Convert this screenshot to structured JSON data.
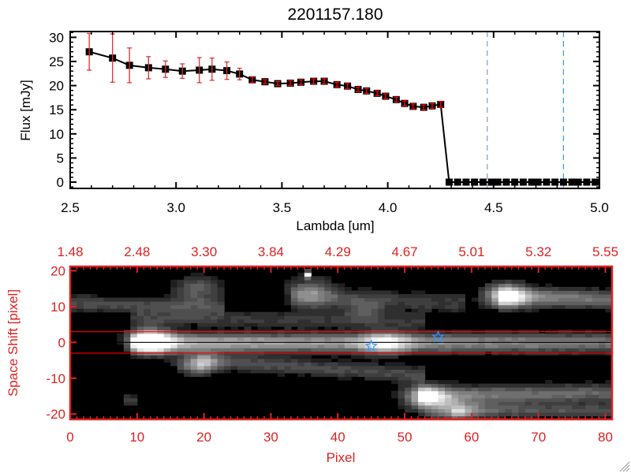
{
  "chart_data": [
    {
      "type": "line",
      "title": "2201157.180",
      "xlabel": "Lambda [um]",
      "ylabel": "Flux [mJy]",
      "xlim": [
        2.5,
        5.0
      ],
      "ylim": [
        -1.3,
        31.2
      ],
      "xticks": [
        "2.5",
        "3.0",
        "3.5",
        "4.0",
        "4.5",
        "5.0"
      ],
      "xtick_values": [
        2.5,
        3.0,
        3.5,
        4.0,
        4.5,
        5.0
      ],
      "yticks": [
        "0",
        "5",
        "10",
        "15",
        "20",
        "25",
        "30"
      ],
      "ytick_values": [
        0,
        5,
        10,
        15,
        20,
        25,
        30
      ],
      "series": [
        {
          "name": "flux",
          "color": "#000000",
          "error_color": "#ff0000",
          "x": [
            2.59,
            2.7,
            2.78,
            2.87,
            2.95,
            3.03,
            3.11,
            3.17,
            3.24,
            3.3,
            3.36,
            3.42,
            3.48,
            3.54,
            3.59,
            3.65,
            3.7,
            3.76,
            3.81,
            3.86,
            3.9,
            3.95,
            3.99,
            4.04,
            4.08,
            4.12,
            4.17,
            4.21,
            4.25,
            4.29,
            4.33,
            4.37,
            4.41,
            4.45,
            4.49,
            4.52,
            4.56,
            4.6,
            4.64,
            4.68,
            4.71,
            4.75,
            4.79,
            4.83,
            4.87,
            4.9,
            4.94,
            4.98
          ],
          "y": [
            27.0,
            25.7,
            24.2,
            23.7,
            23.4,
            23.0,
            23.2,
            23.4,
            23.1,
            22.4,
            21.2,
            20.8,
            20.4,
            20.5,
            20.7,
            20.9,
            20.9,
            20.2,
            19.9,
            19.2,
            18.9,
            18.4,
            17.8,
            17.1,
            16.3,
            15.7,
            15.5,
            15.8,
            16.1,
            0,
            0,
            0,
            0,
            0,
            0,
            0,
            0,
            0,
            0,
            0,
            0,
            0,
            0,
            0,
            0,
            0,
            0,
            0
          ],
          "err": [
            3.8,
            5.0,
            3.6,
            2.3,
            1.7,
            1.5,
            2.6,
            2.3,
            1.8,
            1.2,
            0.6,
            0.4,
            0.4,
            0.5,
            0.5,
            0.5,
            0.5,
            0.5,
            0.5,
            0.5,
            0.5,
            0.5,
            0.5,
            0.5,
            0.5,
            0.5,
            0.5,
            0.5,
            0.6,
            0,
            0,
            0,
            0,
            0,
            0,
            0,
            0,
            0,
            0,
            0,
            0,
            0,
            0,
            0,
            0,
            0,
            0,
            0
          ]
        }
      ],
      "vlines": [
        {
          "x": 4.47,
          "color": "#8a9bb0"
        },
        {
          "x": 4.83,
          "color": "#3399ff"
        }
      ],
      "zero_line_color": "#ff0000"
    },
    {
      "type": "heatmap",
      "xlabel": "Pixel",
      "ylabel": "Space Shift [pixel]",
      "axis_color": "#dd2222",
      "xlim": [
        0,
        81
      ],
      "ylim": [
        -21.5,
        21.2
      ],
      "xticks": [
        "0",
        "10",
        "20",
        "30",
        "40",
        "50",
        "60",
        "70",
        "80"
      ],
      "xtick_values": [
        0,
        10,
        20,
        30,
        40,
        50,
        60,
        70,
        80
      ],
      "top_xticks": [
        "1.48",
        "2.48",
        "3.30",
        "3.84",
        "4.29",
        "4.67",
        "5.01",
        "5.32",
        "5.55"
      ],
      "yticks": [
        "-20",
        "-10",
        "0",
        "10",
        "20"
      ],
      "ytick_values": [
        -20,
        -10,
        0,
        10,
        20
      ],
      "hlines": [
        {
          "y": 3,
          "color": "#ff0000"
        },
        {
          "y": -3,
          "color": "#ff0000"
        },
        {
          "y": 0,
          "color": "#000000"
        }
      ],
      "stars": [
        {
          "x": 45,
          "y": -1,
          "color": "#3399ff"
        },
        {
          "x": 55,
          "y": 1.5,
          "color": "#3399ff"
        }
      ],
      "blobs": [
        {
          "x": 12,
          "y": 0.5,
          "amp": 1.0,
          "sx": 2.2,
          "sy": 2.3
        },
        {
          "x": 47,
          "y": 0,
          "amp": 0.55,
          "sx": 2.5,
          "sy": 2.2
        },
        {
          "x": 19,
          "y": -6,
          "amp": 0.6,
          "sx": 2.0,
          "sy": 2.0
        },
        {
          "x": 19,
          "y": 15,
          "amp": 0.35,
          "sx": 2.5,
          "sy": 2.5
        },
        {
          "x": 36,
          "y": 14,
          "amp": 0.35,
          "sx": 2.5,
          "sy": 3.0
        },
        {
          "x": 44,
          "y": 9,
          "amp": 0.25,
          "sx": 2.0,
          "sy": 2.0
        },
        {
          "x": 65,
          "y": 13,
          "amp": 0.8,
          "sx": 2.2,
          "sy": 2.2
        },
        {
          "x": 53,
          "y": -15,
          "amp": 0.7,
          "sx": 2.3,
          "sy": 2.3
        },
        {
          "x": 57,
          "y": -19,
          "amp": 0.5,
          "sx": 2.5,
          "sy": 1.8
        },
        {
          "x": 35.5,
          "y": 19,
          "amp": 0.95,
          "sx": 0.3,
          "sy": 0.6
        },
        {
          "x": 9,
          "y": -16,
          "amp": 0.25,
          "sx": 1.0,
          "sy": 1.0
        }
      ],
      "streaks": [
        {
          "x0": 10,
          "x1": 81,
          "y0": 0,
          "y1": 0,
          "a0": 0.7,
          "a1": 0.45,
          "sy": 1.8
        },
        {
          "x0": 0,
          "x1": 22,
          "y0": 11,
          "y1": 10,
          "a0": 0.28,
          "a1": 0.25,
          "sy": 1.6
        },
        {
          "x0": 10,
          "x1": 52,
          "y0": 7,
          "y1": 6,
          "a0": 0.22,
          "a1": 0.18,
          "sy": 1.5
        },
        {
          "x0": 20,
          "x1": 52,
          "y0": -5,
          "y1": -9,
          "a0": 0.3,
          "a1": 0.25,
          "sy": 1.6
        },
        {
          "x0": 34,
          "x1": 58,
          "y0": 13,
          "y1": 11,
          "a0": 0.25,
          "a1": 0.2,
          "sy": 2.0
        },
        {
          "x0": 65,
          "x1": 81,
          "y0": 13,
          "y1": 12,
          "a0": 0.55,
          "a1": 0.4,
          "sy": 1.8
        },
        {
          "x0": 53,
          "x1": 81,
          "y0": -15,
          "y1": -14,
          "a0": 0.5,
          "a1": 0.35,
          "sy": 1.8
        },
        {
          "x0": 58,
          "x1": 81,
          "y0": -19,
          "y1": -19,
          "a0": 0.35,
          "a1": 0.25,
          "sy": 1.4
        }
      ]
    }
  ]
}
